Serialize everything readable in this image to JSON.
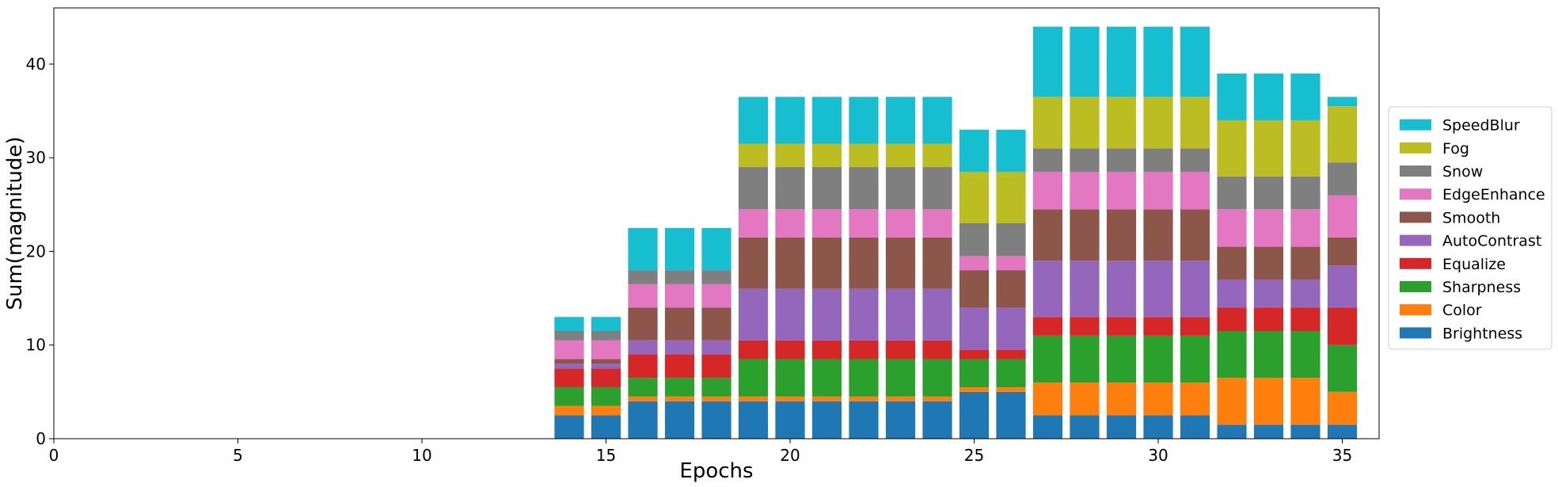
{
  "chart_data": {
    "type": "bar",
    "stacked": true,
    "xlabel": "Epochs",
    "ylabel": "Sum(magnitude)",
    "xlim": [
      0,
      36
    ],
    "ylim": [
      0,
      46
    ],
    "xticks": [
      0,
      5,
      10,
      15,
      20,
      25,
      30,
      35
    ],
    "yticks": [
      0,
      10,
      20,
      30,
      40
    ],
    "legend_position": "center-right",
    "x": [
      14,
      15,
      16,
      17,
      18,
      19,
      20,
      21,
      22,
      23,
      24,
      25,
      26,
      27,
      28,
      29,
      30,
      31,
      32,
      33,
      34,
      35
    ],
    "series": [
      {
        "name": "Brightness",
        "color": "#1f77b4",
        "values": [
          2.5,
          2.5,
          4,
          4,
          4,
          4,
          4,
          4,
          4,
          4,
          4,
          5,
          5,
          2.5,
          2.5,
          2.5,
          2.5,
          2.5,
          1.5,
          1.5,
          1.5,
          1.5
        ]
      },
      {
        "name": "Color",
        "color": "#ff7f0e",
        "values": [
          1,
          1,
          0.5,
          0.5,
          0.5,
          0.5,
          0.5,
          0.5,
          0.5,
          0.5,
          0.5,
          0.5,
          0.5,
          3.5,
          3.5,
          3.5,
          3.5,
          3.5,
          5,
          5,
          5,
          3.5
        ]
      },
      {
        "name": "Sharpness",
        "color": "#2ca02c",
        "values": [
          2,
          2,
          2,
          2,
          2,
          4,
          4,
          4,
          4,
          4,
          4,
          3,
          3,
          5,
          5,
          5,
          5,
          5,
          5,
          5,
          5,
          5
        ]
      },
      {
        "name": "Equalize",
        "color": "#d62728",
        "values": [
          2,
          2,
          2.5,
          2.5,
          2.5,
          2,
          2,
          2,
          2,
          2,
          2,
          1,
          1,
          2,
          2,
          2,
          2,
          2,
          2.5,
          2.5,
          2.5,
          4
        ]
      },
      {
        "name": "AutoContrast",
        "color": "#9467bd",
        "values": [
          0.5,
          0.5,
          1.5,
          1.5,
          1.5,
          5.5,
          5.5,
          5.5,
          5.5,
          5.5,
          5.5,
          4.5,
          4.5,
          6,
          6,
          6,
          6,
          6,
          3,
          3,
          3,
          4.5
        ]
      },
      {
        "name": "Smooth",
        "color": "#8c564b",
        "values": [
          0.5,
          0.5,
          3.5,
          3.5,
          3.5,
          5.5,
          5.5,
          5.5,
          5.5,
          5.5,
          5.5,
          4,
          4,
          5.5,
          5.5,
          5.5,
          5.5,
          5.5,
          3.5,
          3.5,
          3.5,
          3
        ]
      },
      {
        "name": "EdgeEnhance",
        "color": "#e377c2",
        "values": [
          2,
          2,
          2.5,
          2.5,
          2.5,
          3,
          3,
          3,
          3,
          3,
          3,
          1.5,
          1.5,
          4,
          4,
          4,
          4,
          4,
          4,
          4,
          4,
          4.5
        ]
      },
      {
        "name": "Snow",
        "color": "#7f7f7f",
        "values": [
          1,
          1,
          1.5,
          1.5,
          1.5,
          4.5,
          4.5,
          4.5,
          4.5,
          4.5,
          4.5,
          3.5,
          3.5,
          2.5,
          2.5,
          2.5,
          2.5,
          2.5,
          3.5,
          3.5,
          3.5,
          3.5
        ]
      },
      {
        "name": "Fog",
        "color": "#bcbd22",
        "values": [
          0,
          0,
          0,
          0,
          0,
          2.5,
          2.5,
          2.5,
          2.5,
          2.5,
          2.5,
          5.5,
          5.5,
          5.5,
          5.5,
          5.5,
          5.5,
          5.5,
          6,
          6,
          6,
          6
        ]
      },
      {
        "name": "SpeedBlur",
        "color": "#17becf",
        "values": [
          1.5,
          1.5,
          4.5,
          4.5,
          4.5,
          5,
          5,
          5,
          5,
          5,
          5,
          4.5,
          4.5,
          7.5,
          7.5,
          7.5,
          7.5,
          7.5,
          5,
          5,
          5,
          1
        ]
      }
    ]
  }
}
